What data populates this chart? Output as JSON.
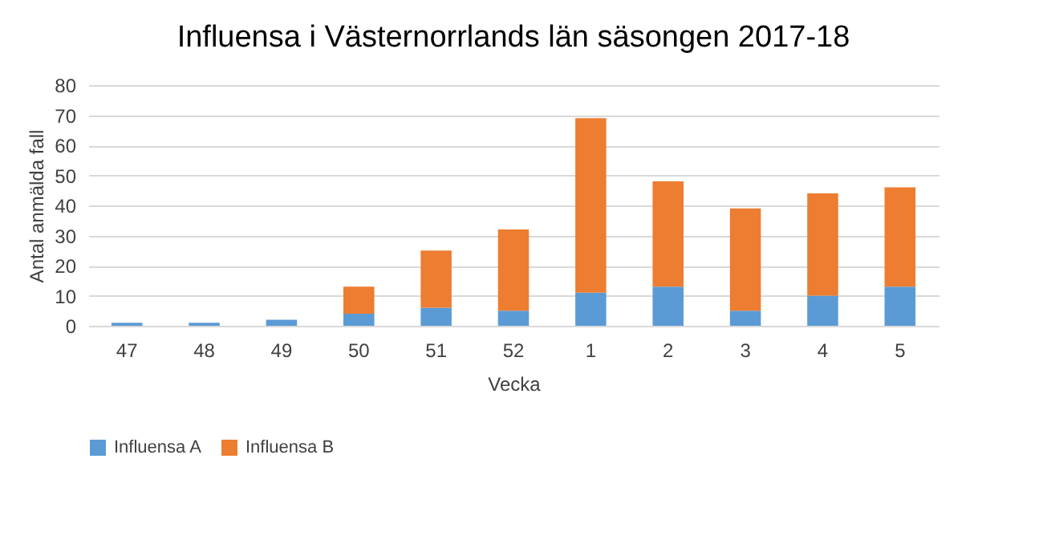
{
  "chart_data": {
    "type": "bar",
    "title": "Influensa i Västernorrlands län säsongen 2017-18",
    "xlabel": "Vecka",
    "ylabel": "Antal anmälda fall",
    "categories": [
      "47",
      "48",
      "49",
      "50",
      "51",
      "52",
      "1",
      "2",
      "3",
      "4",
      "5"
    ],
    "stacked": true,
    "series": [
      {
        "name": "Influensa A",
        "color": "#5b9bd5",
        "values": [
          1,
          1,
          2,
          4,
          6,
          5,
          11,
          13,
          5,
          10,
          13
        ]
      },
      {
        "name": "Influensa B",
        "color": "#ed7d31",
        "values": [
          0,
          0,
          0,
          9,
          19,
          27,
          58,
          35,
          34,
          34,
          33
        ]
      }
    ],
    "ylim": [
      0,
      80
    ],
    "yticks": [
      0,
      10,
      20,
      30,
      40,
      50,
      60,
      70,
      80
    ],
    "grid": "y",
    "legend": "bottom"
  }
}
